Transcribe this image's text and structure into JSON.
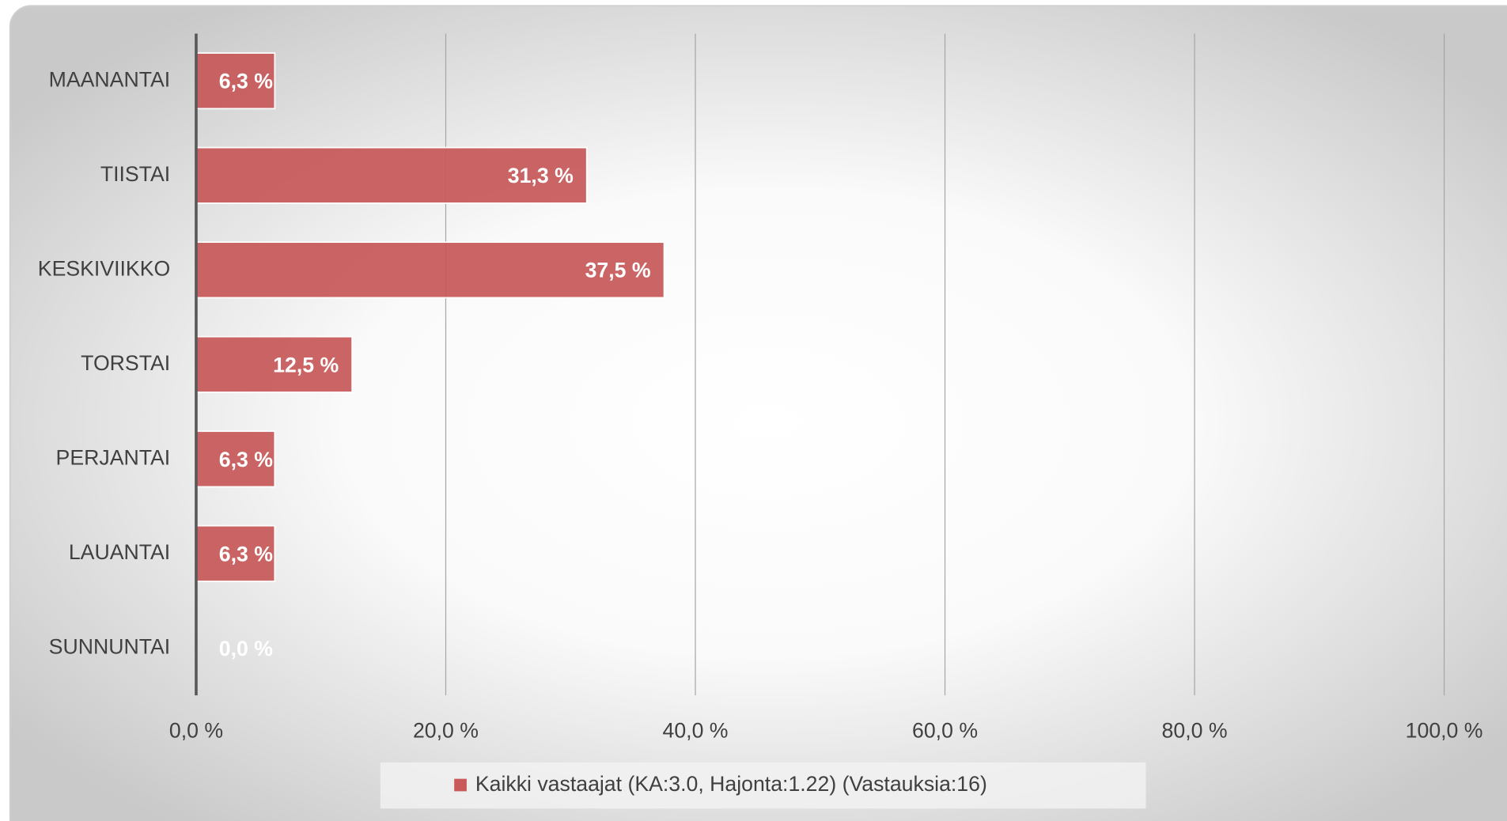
{
  "chart_data": {
    "type": "hbar",
    "categories": [
      "MAANANTAI",
      "TIISTAI",
      "KESKIVIIKKO",
      "TORSTAI",
      "PERJANTAI",
      "LAUANTAI",
      "SUNNUNTAI"
    ],
    "series": [
      {
        "name": "Kaikki vastaajat (KA:3.0, Hajonta:1.22) (Vastauksia:16)",
        "color": "#c85a5a",
        "values": [
          6.3,
          31.3,
          37.5,
          12.5,
          6.3,
          6.3,
          0.0
        ],
        "value_labels": [
          "6,3 %",
          "31,3 %",
          "37,5 %",
          "12,5 %",
          "6,3 %",
          "6,3 %",
          "0,0 %"
        ]
      }
    ],
    "xlim": [
      0,
      100
    ],
    "xticks": [
      {
        "value": 0,
        "label": "0,0 %"
      },
      {
        "value": 20,
        "label": "20,0 %"
      },
      {
        "value": 40,
        "label": "40,0 %"
      },
      {
        "value": 60,
        "label": "60,0 %"
      },
      {
        "value": 80,
        "label": "80,0 %"
      },
      {
        "value": 100,
        "label": "100,0 %"
      }
    ],
    "grid": true,
    "legend": "bottom"
  }
}
